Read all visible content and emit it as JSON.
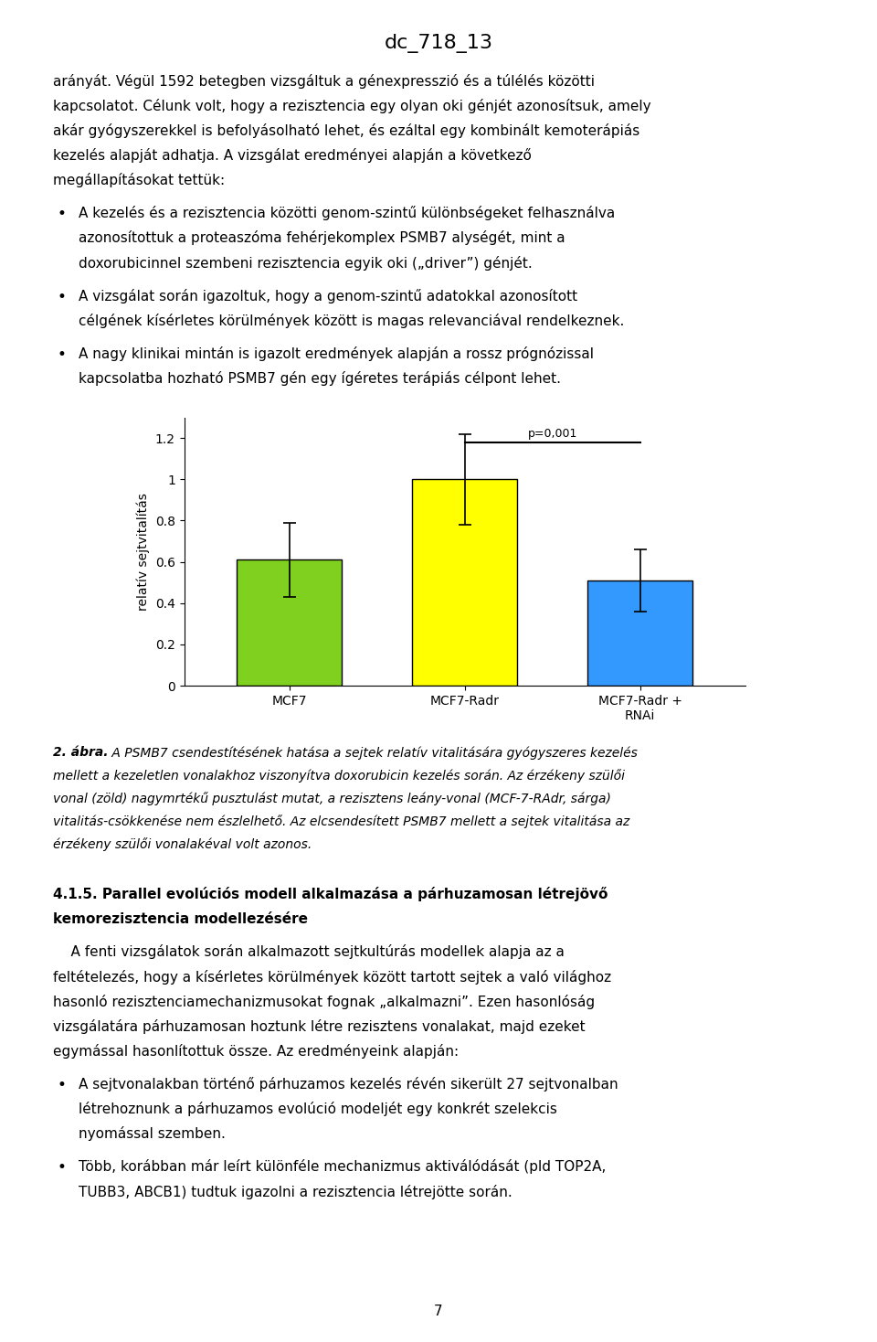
{
  "chart_data": {
    "type": "bar",
    "categories": [
      "MCF7",
      "MCF7-Radr",
      "MCF7-Radr +\nRNAi"
    ],
    "values": [
      0.61,
      1.0,
      0.51
    ],
    "errors": [
      0.18,
      0.22,
      0.15
    ],
    "colors": [
      "#80d020",
      "#ffff00",
      "#3399ff"
    ],
    "ylabel": "relatív sejtvitalítás",
    "ylim": [
      0,
      1.3
    ],
    "yticks": [
      0,
      0.2,
      0.4,
      0.6,
      0.8,
      1,
      1.2
    ],
    "annotations": [
      {
        "text": "p=0,001",
        "from": "MCF7-Radr",
        "to": "MCF7-Radr +\nRNAi",
        "y": 1.18
      }
    ]
  },
  "page": {
    "title": "dc_718_13",
    "page_number": "7",
    "bullet": "•",
    "before": [
      {
        "kind": "paragraph",
        "lines": [
          "arányát. Végül 1592 betegben vizsgáltuk a génexpresszió és a túlélés közötti",
          "kapcsolatot. Célunk volt, hogy a rezisztencia egy olyan oki génjét azonosítsuk, amely",
          "akár gyógyszerekkel is befolyásolható lehet, és ezáltal egy kombinált kemoterápiás",
          "kezelés alapját adhatja. A vizsgálat eredményei alapján a következő",
          "megállapításokat tettük:"
        ]
      },
      {
        "kind": "bullet",
        "lines": [
          "A kezelés és a rezisztencia közötti genom-szintű különbségeket felhasználva",
          "azonosítottuk a proteaszóma fehérjekomplex PSMB7 alységét, mint a",
          "doxorubicinnel szembeni rezisztencia egyik oki („driver”) génjét."
        ]
      },
      {
        "kind": "bullet",
        "lines": [
          "A vizsgálat során igazoltuk, hogy a genom-szintű adatokkal azonosított",
          "célgének kísérletes körülmények között is magas relevanciával rendelkeznek."
        ]
      },
      {
        "kind": "bullet",
        "lines": [
          "A nagy klinikai mintán is igazolt eredmények alapján a rossz prógnózissal",
          "kapcsolatba hozható PSMB7 gén egy ígéretes terápiás célpont lehet."
        ]
      }
    ],
    "caption": {
      "label": "2. ábra.",
      "lines": [
        " A PSMB7 csendestítésének hatása a sejtek relatív vitalitására gyógyszeres kezelés",
        "mellett a kezeletlen vonalakhoz viszonyítva doxorubicin kezelés során. Az érzékeny szülői",
        "vonal (zöld) nagymrtékű pusztulást mutat, a rezisztens leány-vonal (MCF-7-RAdr, sárga)",
        "vitalitás-csökkenése nem észlelhető. Az elcsendesített PSMB7 mellett a sejtek vitalitása az",
        "érzékeny szülői vonalakéval volt azonos."
      ]
    },
    "after": [
      {
        "kind": "heading",
        "lines": [
          "4.1.5. Parallel evolúciós modell alkalmazása a párhuzamosan létrejövő",
          "kemorezisztencia modellezésére"
        ]
      },
      {
        "kind": "paragraph",
        "lines": [
          "    A fenti vizsgálatok során alkalmazott sejtkultúrás modellek alapja az a",
          "feltételezés, hogy a kísérletes körülmények között tartott sejtek a való világhoz",
          "hasonló rezisztenciamechanizmusokat fognak „alkalmazni”. Ezen hasonlóság",
          "vizsgálatára párhuzamosan hoztunk létre rezisztens vonalakat, majd ezeket",
          "egymással hasonlítottuk össze. Az eredményeink alapján:"
        ]
      },
      {
        "kind": "bullet",
        "lines": [
          "A sejtvonalakban történő párhuzamos kezelés révén sikerült 27 sejtvonalban",
          "létrehoznunk a párhuzamos evolúció modeljét egy konkrét szelekcis",
          "nyomással szemben."
        ]
      },
      {
        "kind": "bullet",
        "lines": [
          "Több, korábban már leírt különféle mechanizmus aktiválódását (pld TOP2A,",
          "TUBB3, ABCB1) tudtuk igazolni a rezisztencia létrejötte során."
        ]
      }
    ]
  }
}
